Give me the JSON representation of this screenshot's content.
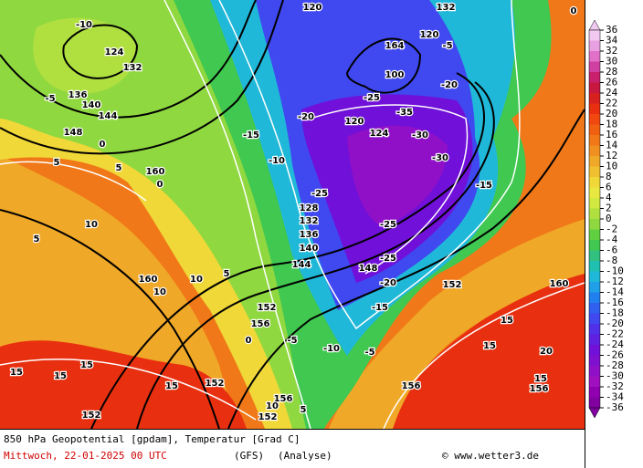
{
  "map": {
    "contour_labels": [
      "-10",
      "124",
      "132",
      "-5",
      "136",
      "140",
      "144",
      "148",
      "0",
      "5",
      "5",
      "160",
      "0",
      "10",
      "5",
      "160",
      "10",
      "15",
      "15",
      "15",
      "152",
      "152",
      "15",
      "144",
      "140",
      "136",
      "132",
      "128",
      "-25",
      "-10",
      "-15",
      "-20",
      "120",
      "124",
      "-30",
      "-35",
      "-30",
      "-25",
      "-25",
      "-20",
      "148",
      "152",
      "-15",
      "-15",
      "-10",
      "-5",
      "156",
      "0",
      "160",
      "15",
      "15",
      "20",
      "15",
      "156",
      "120",
      "120",
      "132",
      "-5",
      "100",
      "164",
      "-20",
      "-25",
      "5",
      "156",
      "152",
      "10",
      "156",
      "152",
      "-5",
      "0",
      "5",
      "10"
    ]
  },
  "colorbar": {
    "ticks": [
      36,
      34,
      32,
      30,
      28,
      26,
      24,
      22,
      20,
      18,
      16,
      14,
      12,
      10,
      8,
      6,
      4,
      2,
      0,
      -2,
      -4,
      -6,
      -8,
      -10,
      -12,
      -14,
      -16,
      -18,
      -20,
      -22,
      -24,
      -26,
      -28,
      -30,
      -32,
      -34,
      -36
    ],
    "colors": [
      "#f0c8f0",
      "#e8a0e0",
      "#e070c8",
      "#d040a0",
      "#c8206c",
      "#c81840",
      "#d82020",
      "#e83010",
      "#f04810",
      "#f06010",
      "#f07818",
      "#f09020",
      "#f0a828",
      "#f0c030",
      "#f0d838",
      "#e8e840",
      "#d0e840",
      "#b0e040",
      "#90d840",
      "#60d040",
      "#40c850",
      "#30c080",
      "#20c0b0",
      "#20b8d8",
      "#20a0e8",
      "#2080f0",
      "#3060f0",
      "#4048f0",
      "#5030e8",
      "#6020e0",
      "#7010d8",
      "#8010d0",
      "#9010c8",
      "#a010c0",
      "#9000b0",
      "#8000a0"
    ]
  },
  "footer": {
    "title": "850 hPa Geopotential [gpdam], Temperatur [Grad C]",
    "date": "Mittwoch, 22-01-2025  00 UTC",
    "model": "(GFS)",
    "run": "(Analyse)",
    "credit": "© www.wetter3.de"
  }
}
